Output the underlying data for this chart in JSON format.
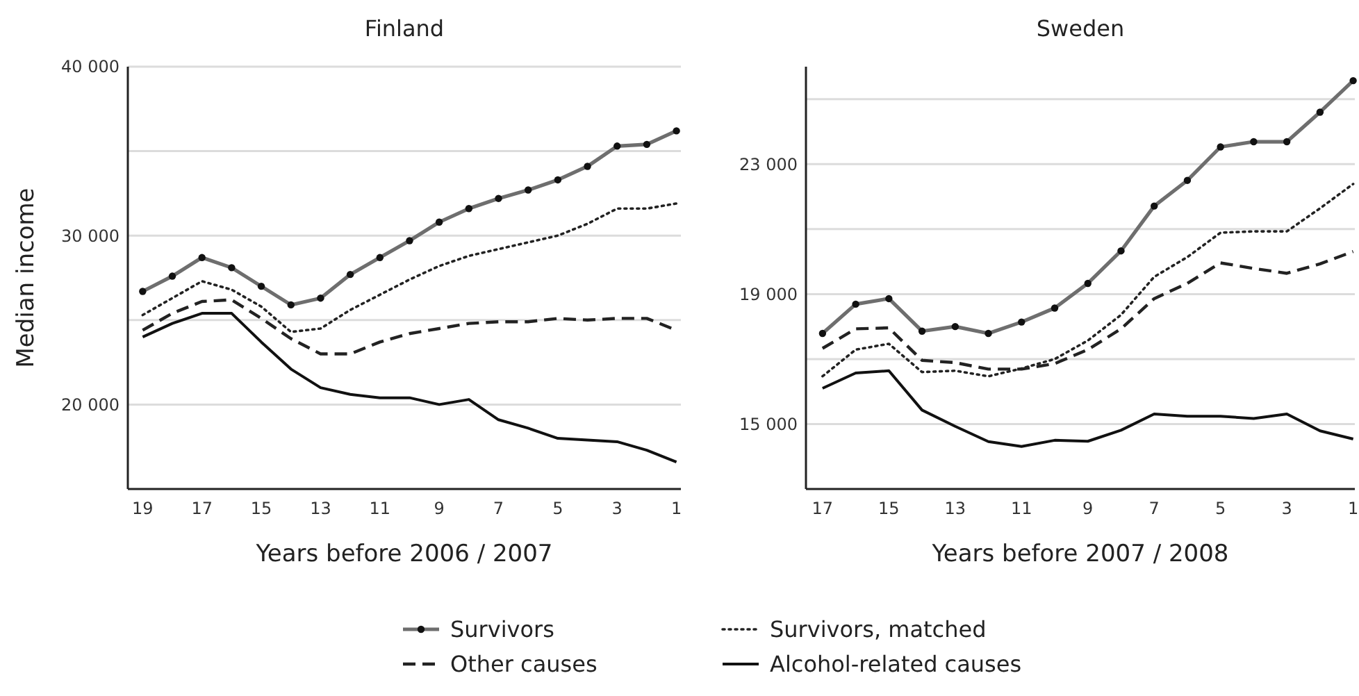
{
  "chart_data": [
    {
      "type": "line",
      "title": "Finland",
      "xlabel": "Years before 2006 / 2007",
      "ylabel": "Median income",
      "x": [
        19,
        18,
        17,
        16,
        15,
        14,
        13,
        12,
        11,
        10,
        9,
        8,
        7,
        6,
        5,
        4,
        3,
        2,
        1
      ],
      "xlim": [
        19.5,
        0.85
      ],
      "xticks": [
        19,
        17,
        15,
        13,
        11,
        9,
        7,
        5,
        3,
        1
      ],
      "ylim": [
        15000,
        40000
      ],
      "yticks": [
        {
          "value": 20000,
          "label": "20 000"
        },
        {
          "value": 25000,
          "label": null
        },
        {
          "value": 30000,
          "label": "30 000"
        },
        {
          "value": 35000,
          "label": null
        },
        {
          "value": 40000,
          "label": "40 000"
        }
      ],
      "grid": "y",
      "legend": "bottom",
      "series": [
        {
          "name": "Survivors",
          "color": "#6e6e6e",
          "marker": "circle",
          "line_style": "solid",
          "values": [
            26700,
            27600,
            28700,
            28100,
            27000,
            25900,
            26300,
            27700,
            28700,
            29700,
            30800,
            31600,
            32200,
            32700,
            33300,
            34100,
            35300,
            35400,
            36200
          ]
        },
        {
          "name": "Survivors, matched",
          "color": "#222222",
          "marker": "none",
          "line_style": "dotted",
          "values": [
            25300,
            26300,
            27300,
            26800,
            25800,
            24300,
            24500,
            25600,
            26500,
            27400,
            28200,
            28800,
            29200,
            29600,
            30000,
            30700,
            31600,
            31600,
            31900
          ]
        },
        {
          "name": "Other causes",
          "color": "#222222",
          "marker": "none",
          "line_style": "dashed",
          "values": [
            24400,
            25400,
            26100,
            26200,
            25100,
            23900,
            23000,
            23000,
            23700,
            24200,
            24500,
            24800,
            24900,
            24900,
            25100,
            25000,
            25100,
            25100,
            24400
          ]
        },
        {
          "name": "Alcohol-related causes",
          "color": "#111111",
          "marker": "none",
          "line_style": "solid",
          "values": [
            24000,
            24800,
            25400,
            25400,
            23700,
            22100,
            21000,
            20600,
            20400,
            20400,
            20000,
            20300,
            19100,
            18600,
            18000,
            17900,
            17800,
            17300,
            16600
          ]
        }
      ]
    },
    {
      "type": "line",
      "title": "Sweden",
      "xlabel": "Years before 2007 / 2008",
      "x": [
        17,
        16,
        15,
        14,
        13,
        12,
        11,
        10,
        9,
        8,
        7,
        6,
        5,
        4,
        3,
        2,
        1
      ],
      "xlim": [
        17.5,
        0.95
      ],
      "xticks": [
        17,
        15,
        13,
        11,
        9,
        7,
        5,
        3,
        1
      ],
      "ylim": [
        13000,
        26000
      ],
      "yticks": [
        {
          "value": 15000,
          "label": "15 000"
        },
        {
          "value": 17000,
          "label": null
        },
        {
          "value": 19000,
          "label": "19 000"
        },
        {
          "value": 21000,
          "label": null
        },
        {
          "value": 23000,
          "label": "23 000"
        },
        {
          "value": 25000,
          "label": null
        }
      ],
      "grid": "y",
      "series": [
        {
          "color": "#6e6e6e",
          "marker": "circle",
          "line_style": "solid",
          "values": [
            17790,
            18690,
            18860,
            17860,
            18000,
            17790,
            18140,
            18570,
            19330,
            20330,
            21710,
            22500,
            23530,
            23690,
            23690,
            24600,
            25570
          ]
        },
        {
          "color": "#222222",
          "marker": "none",
          "line_style": "dotted",
          "values": [
            16470,
            17290,
            17470,
            16600,
            16640,
            16470,
            16710,
            17000,
            17570,
            18360,
            19530,
            20140,
            20890,
            20930,
            20930,
            21640,
            22390
          ]
        },
        {
          "color": "#222222",
          "marker": "none",
          "line_style": "dashed",
          "values": [
            17330,
            17930,
            17960,
            16960,
            16890,
            16690,
            16690,
            16860,
            17290,
            17930,
            18860,
            19330,
            19960,
            19790,
            19640,
            19930,
            20310
          ]
        },
        {
          "color": "#111111",
          "marker": "none",
          "line_style": "solid",
          "values": [
            16100,
            16570,
            16640,
            15430,
            14930,
            14460,
            14310,
            14500,
            14470,
            14810,
            15310,
            15240,
            15240,
            15170,
            15310,
            14790,
            14540
          ]
        }
      ]
    }
  ]
}
